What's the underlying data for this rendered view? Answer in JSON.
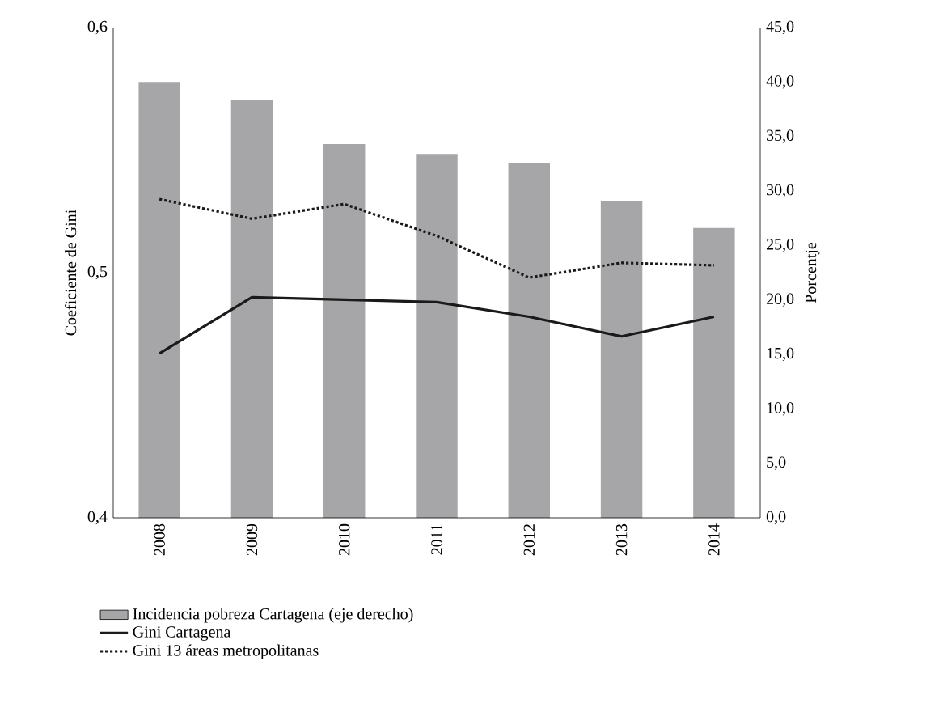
{
  "chart_data": {
    "type": "bar",
    "ylabel": "Coeficiente de Gini",
    "y2label": "Porcentje",
    "categories": [
      "2008",
      "2009",
      "2010",
      "2011",
      "2012",
      "2013",
      "2014"
    ],
    "series": [
      {
        "name": "Incidencia pobreza Cartagena (eje derecho)",
        "axis": "y2",
        "color": "#a6a6a8",
        "values": [
          40.0,
          38.4,
          34.3,
          33.4,
          32.6,
          29.1,
          26.6
        ]
      },
      {
        "name": "Gini Cartagena",
        "type": "line",
        "color": "#1a1a1a",
        "line_style": "solid",
        "values": [
          0.467,
          0.49,
          0.489,
          0.488,
          0.482,
          0.474,
          0.482
        ]
      },
      {
        "name": "Gini 13 áreas metropolitanas",
        "type": "line",
        "color": "#1a1a1a",
        "line_style": "dotted",
        "values": [
          0.53,
          0.522,
          0.528,
          0.515,
          0.498,
          0.504,
          0.503
        ]
      }
    ],
    "ylim": [
      0.4,
      0.6
    ],
    "yticks": [
      {
        "value": 0.4,
        "label": "0,4"
      },
      {
        "value": 0.5,
        "label": "0,5"
      },
      {
        "value": 0.6,
        "label": "0,6"
      }
    ],
    "y2lim": [
      0,
      45
    ],
    "y2ticks": [
      {
        "value": 0,
        "label": "0,0"
      },
      {
        "value": 5,
        "label": "5,0"
      },
      {
        "value": 10,
        "label": "10,0"
      },
      {
        "value": 15,
        "label": "15,0"
      },
      {
        "value": 20,
        "label": "20,0"
      },
      {
        "value": 25,
        "label": "25,0"
      },
      {
        "value": 30,
        "label": "30,0"
      },
      {
        "value": 35,
        "label": "35,0"
      },
      {
        "value": 40,
        "label": "40,0"
      },
      {
        "value": 45,
        "label": "45,0"
      }
    ],
    "legend": "bottom",
    "grid": false
  }
}
